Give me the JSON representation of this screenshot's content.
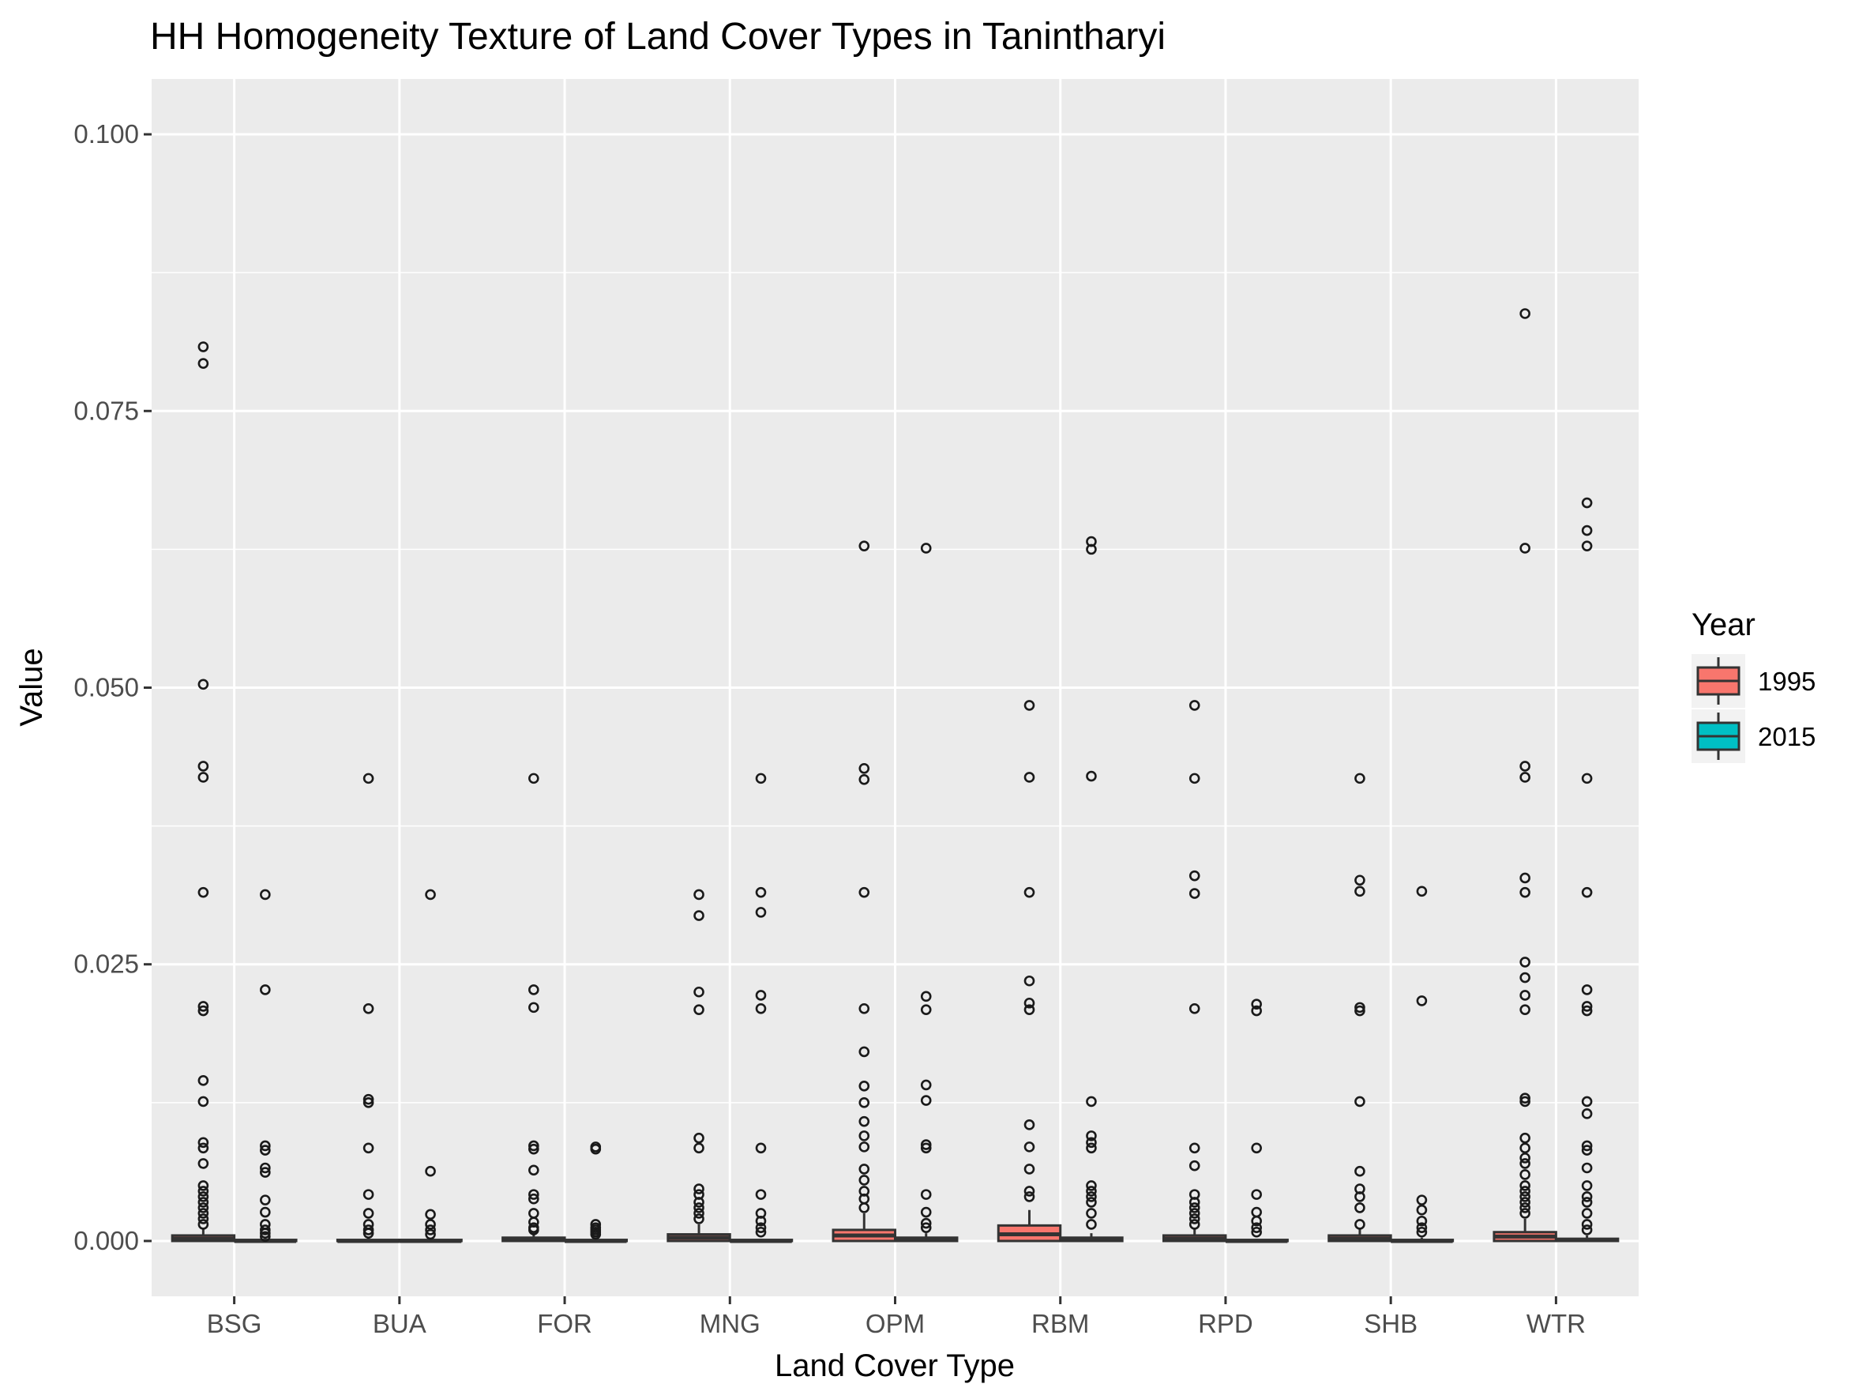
{
  "chart_data": {
    "type": "boxplot",
    "title": "HH Homogeneity Texture of Land Cover Types in Tanintharyi",
    "xlabel": "Land Cover Type",
    "ylabel": "Value",
    "ylim": [
      -0.005,
      0.105
    ],
    "yticks": [
      "0.000",
      "0.025",
      "0.050",
      "0.075",
      "0.100"
    ],
    "ytick_values": [
      0,
      0.025,
      0.05,
      0.075,
      0.1
    ],
    "grid": true,
    "legend": {
      "title": "Year",
      "position": "right"
    },
    "categories": [
      "BSG",
      "BUA",
      "FOR",
      "MNG",
      "OPM",
      "RBM",
      "RPD",
      "SHB",
      "WTR"
    ],
    "series": [
      {
        "name": "1995",
        "color": "#F8766D",
        "boxes": [
          {
            "q1": 0.0,
            "median": 0.0002,
            "q3": 0.0005,
            "whisker_low": 0.0,
            "whisker_high": 0.0012,
            "outliers": [
              0.0808,
              0.0793,
              0.0503,
              0.0429,
              0.0419,
              0.0315,
              0.0212,
              0.0208,
              0.0145,
              0.0126,
              0.0089,
              0.0084,
              0.007,
              0.005,
              0.0045,
              0.004,
              0.0035,
              0.003,
              0.0025,
              0.002,
              0.0015
            ]
          },
          {
            "q1": 0.0,
            "median": 0.0,
            "q3": 0.0001,
            "whisker_low": 0.0,
            "whisker_high": 0.0003,
            "outliers": [
              0.0418,
              0.021,
              0.0128,
              0.0125,
              0.0084,
              0.0042,
              0.0025,
              0.0015,
              0.001,
              0.0007
            ]
          },
          {
            "q1": 0.0,
            "median": 0.0001,
            "q3": 0.0003,
            "whisker_low": 0.0,
            "whisker_high": 0.0007,
            "outliers": [
              0.0418,
              0.0227,
              0.0211,
              0.0086,
              0.0083,
              0.0064,
              0.0042,
              0.0038,
              0.0025,
              0.0017,
              0.0012,
              0.001
            ]
          },
          {
            "q1": 0.0,
            "median": 0.0003,
            "q3": 0.0006,
            "whisker_low": 0.0,
            "whisker_high": 0.0015,
            "outliers": [
              0.0313,
              0.0294,
              0.0225,
              0.0209,
              0.0093,
              0.0084,
              0.0047,
              0.0042,
              0.0035,
              0.003,
              0.0025,
              0.002
            ]
          },
          {
            "q1": 0.0,
            "median": 0.0005,
            "q3": 0.001,
            "whisker_low": 0.0,
            "whisker_high": 0.0025,
            "outliers": [
              0.0628,
              0.0427,
              0.0417,
              0.0315,
              0.021,
              0.0171,
              0.014,
              0.0125,
              0.0108,
              0.0095,
              0.0085,
              0.0065,
              0.0055,
              0.0045,
              0.0038,
              0.003
            ]
          },
          {
            "q1": 0.0,
            "median": 0.0006,
            "q3": 0.0014,
            "whisker_low": 0.0,
            "whisker_high": 0.0028,
            "outliers": [
              0.0484,
              0.0419,
              0.0315,
              0.0235,
              0.0215,
              0.0209,
              0.0105,
              0.0085,
              0.0065,
              0.0045,
              0.004
            ]
          },
          {
            "q1": 0.0,
            "median": 0.0002,
            "q3": 0.0005,
            "whisker_low": 0.0,
            "whisker_high": 0.0012,
            "outliers": [
              0.0484,
              0.0418,
              0.033,
              0.0314,
              0.021,
              0.0084,
              0.0068,
              0.0042,
              0.0035,
              0.003,
              0.0025,
              0.002,
              0.0015
            ]
          },
          {
            "q1": 0.0,
            "median": 0.0002,
            "q3": 0.0005,
            "whisker_low": 0.0,
            "whisker_high": 0.0012,
            "outliers": [
              0.0418,
              0.0326,
              0.0316,
              0.0211,
              0.0208,
              0.0126,
              0.0063,
              0.0047,
              0.004,
              0.003,
              0.0015
            ]
          },
          {
            "q1": 0.0,
            "median": 0.0004,
            "q3": 0.0008,
            "whisker_low": 0.0,
            "whisker_high": 0.002,
            "outliers": [
              0.0838,
              0.0626,
              0.0429,
              0.0419,
              0.0328,
              0.0315,
              0.0252,
              0.0238,
              0.0222,
              0.0209,
              0.0129,
              0.0126,
              0.0093,
              0.0084,
              0.0075,
              0.007,
              0.006,
              0.005,
              0.0045,
              0.004,
              0.0035,
              0.003,
              0.0025
            ]
          }
        ]
      },
      {
        "name": "2015",
        "color": "#00BFC4",
        "boxes": [
          {
            "q1": 0.0,
            "median": 0.0,
            "q3": 0.0001,
            "whisker_low": 0.0,
            "whisker_high": 0.0003,
            "outliers": [
              0.0313,
              0.0227,
              0.0086,
              0.0082,
              0.0066,
              0.0062,
              0.0037,
              0.0026,
              0.0015,
              0.001,
              0.0007,
              0.0004
            ]
          },
          {
            "q1": 0.0,
            "median": 0.0,
            "q3": 0.0001,
            "whisker_low": 0.0,
            "whisker_high": 0.0002,
            "outliers": [
              0.0313,
              0.0063,
              0.0024,
              0.0015,
              0.001,
              0.0006
            ]
          },
          {
            "q1": 0.0,
            "median": 0.0,
            "q3": 0.0001,
            "whisker_low": 0.0,
            "whisker_high": 0.0002,
            "outliers": [
              0.0085,
              0.0083,
              0.0015,
              0.0012,
              0.001,
              0.0008,
              0.0006
            ]
          },
          {
            "q1": 0.0,
            "median": 0.0,
            "q3": 0.0001,
            "whisker_low": 0.0,
            "whisker_high": 0.0002,
            "outliers": [
              0.0418,
              0.0315,
              0.0297,
              0.0222,
              0.021,
              0.0084,
              0.0042,
              0.0025,
              0.0018,
              0.0012,
              0.0008
            ]
          },
          {
            "q1": 0.0,
            "median": 0.0001,
            "q3": 0.0003,
            "whisker_low": 0.0,
            "whisker_high": 0.0007,
            "outliers": [
              0.0626,
              0.0221,
              0.0209,
              0.0141,
              0.0127,
              0.0087,
              0.0084,
              0.0042,
              0.0026,
              0.0016,
              0.0012
            ]
          },
          {
            "q1": 0.0,
            "median": 0.0001,
            "q3": 0.0003,
            "whisker_low": 0.0,
            "whisker_high": 0.0007,
            "outliers": [
              0.0632,
              0.0625,
              0.042,
              0.0126,
              0.0095,
              0.0089,
              0.0084,
              0.005,
              0.0045,
              0.004,
              0.0035,
              0.0025,
              0.0015
            ]
          },
          {
            "q1": 0.0,
            "median": 0.0,
            "q3": 0.0001,
            "whisker_low": 0.0,
            "whisker_high": 0.0002,
            "outliers": [
              0.0214,
              0.0208,
              0.0084,
              0.0042,
              0.0026,
              0.0018,
              0.0012,
              0.0008
            ]
          },
          {
            "q1": 0.0,
            "median": 0.0,
            "q3": 0.0001,
            "whisker_low": 0.0,
            "whisker_high": 0.0003,
            "outliers": [
              0.0316,
              0.0217,
              0.0037,
              0.0028,
              0.0018,
              0.0012,
              0.0008
            ]
          },
          {
            "q1": 0.0,
            "median": 0.0001,
            "q3": 0.0002,
            "whisker_low": 0.0,
            "whisker_high": 0.0005,
            "outliers": [
              0.0667,
              0.0642,
              0.0628,
              0.0418,
              0.0315,
              0.0227,
              0.0212,
              0.0208,
              0.0126,
              0.0115,
              0.0086,
              0.0082,
              0.0066,
              0.005,
              0.004,
              0.0035,
              0.0025,
              0.0015,
              0.001
            ]
          }
        ]
      }
    ]
  }
}
